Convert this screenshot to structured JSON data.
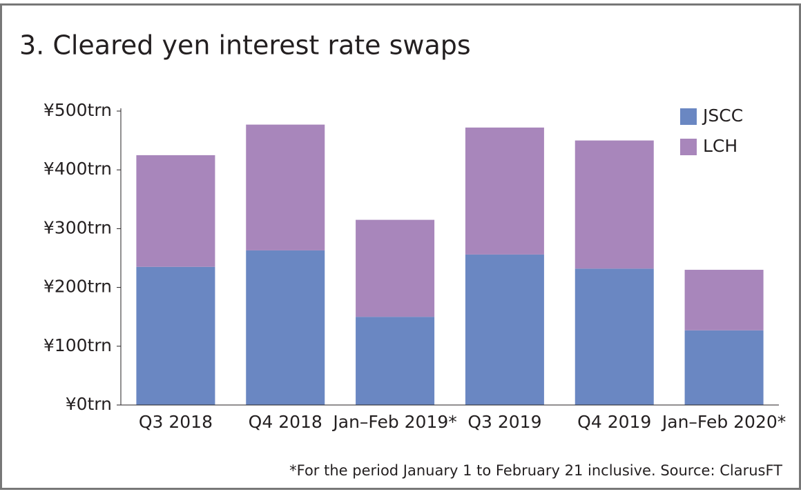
{
  "chart_data": {
    "type": "stacked_bar",
    "title": "3. Cleared yen interest rate swaps",
    "categories": [
      "Q3 2018",
      "Q4 2018",
      "Jan–Feb 2019*",
      "Q3 2019",
      "Q4 2019",
      "Jan–Feb 2020*"
    ],
    "series": [
      {
        "name": "JSCC",
        "color": "#6a87c2",
        "values": [
          235,
          263,
          150,
          256,
          232,
          127
        ]
      },
      {
        "name": "LCH",
        "color": "#a886bb",
        "values": [
          190,
          214,
          165,
          216,
          218,
          103
        ]
      }
    ],
    "ylim": [
      0,
      500
    ],
    "yticks": [
      {
        "value": 0,
        "label": "¥0trn"
      },
      {
        "value": 100,
        "label": "¥100trn"
      },
      {
        "value": 200,
        "label": "¥200trn"
      },
      {
        "value": 300,
        "label": "¥300trn"
      },
      {
        "value": 400,
        "label": "¥400trn"
      },
      {
        "value": 500,
        "label": "¥500trn"
      }
    ],
    "legend": "upper-right",
    "footnote": "*For the period January 1 to February 21 inclusive. Source: ClarusFT"
  }
}
